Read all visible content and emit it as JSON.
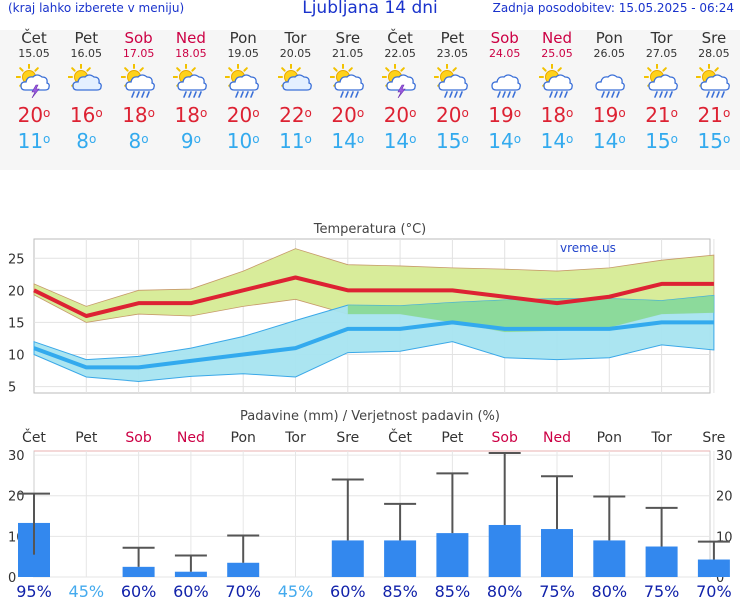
{
  "header": {
    "left_note": "(kraj lahko izberete v meniju)",
    "title": "Ljubljana 14 dni",
    "updated": "Zadnja posodobitev: 15.05.2025 - 06:24"
  },
  "days": [
    {
      "name": "Čet",
      "date": "15.05",
      "weekend": false,
      "icon": "sun-cloud-lightning-icon",
      "tmax": "20",
      "tmin": "11"
    },
    {
      "name": "Pet",
      "date": "16.05",
      "weekend": false,
      "icon": "sun-cloud-icon",
      "tmax": "16",
      "tmin": "8"
    },
    {
      "name": "Sob",
      "date": "17.05",
      "weekend": true,
      "icon": "sun-cloud-rain-icon",
      "tmax": "18",
      "tmin": "8"
    },
    {
      "name": "Ned",
      "date": "18.05",
      "weekend": true,
      "icon": "sun-cloud-rain-icon",
      "tmax": "18",
      "tmin": "9"
    },
    {
      "name": "Pon",
      "date": "19.05",
      "weekend": false,
      "icon": "sun-cloud-rain-icon",
      "tmax": "20",
      "tmin": "10"
    },
    {
      "name": "Tor",
      "date": "20.05",
      "weekend": false,
      "icon": "sun-cloud-icon",
      "tmax": "22",
      "tmin": "11"
    },
    {
      "name": "Sre",
      "date": "21.05",
      "weekend": false,
      "icon": "sun-cloud-rain-icon",
      "tmax": "20",
      "tmin": "14"
    },
    {
      "name": "Čet",
      "date": "22.05",
      "weekend": false,
      "icon": "sun-cloud-lightning-icon",
      "tmax": "20",
      "tmin": "14"
    },
    {
      "name": "Pet",
      "date": "23.05",
      "weekend": false,
      "icon": "sun-cloud-rain-icon",
      "tmax": "20",
      "tmin": "15"
    },
    {
      "name": "Sob",
      "date": "24.05",
      "weekend": true,
      "icon": "cloud-rain-icon",
      "tmax": "19",
      "tmin": "14"
    },
    {
      "name": "Ned",
      "date": "25.05",
      "weekend": true,
      "icon": "sun-cloud-rain-icon",
      "tmax": "18",
      "tmin": "14"
    },
    {
      "name": "Pon",
      "date": "26.05",
      "weekend": false,
      "icon": "cloud-rain-icon",
      "tmax": "19",
      "tmin": "14"
    },
    {
      "name": "Tor",
      "date": "27.05",
      "weekend": false,
      "icon": "sun-cloud-rain-icon",
      "tmax": "21",
      "tmin": "15"
    },
    {
      "name": "Sre",
      "date": "28.05",
      "weekend": false,
      "icon": "sun-cloud-rain-icon",
      "tmax": "21",
      "tmin": "15"
    }
  ],
  "colors": {
    "weekend": "#cc0044",
    "tmax": "#dd2233",
    "tmin": "#33aaee",
    "tmax_band": "#d8ec9a",
    "tmin_band": "#a6e4f0",
    "overlap_band": "#88d892",
    "bar": "#3388ee",
    "prob": "#1122aa",
    "prob_low": "#44aaee"
  },
  "chart_data": [
    {
      "type": "line",
      "title": "Temperatura (°C)",
      "watermark": "vreme.us",
      "categories": [
        "15.05",
        "16.05",
        "17.05",
        "18.05",
        "19.05",
        "20.05",
        "21.05",
        "22.05",
        "23.05",
        "24.05",
        "25.05",
        "26.05",
        "27.05",
        "28.05"
      ],
      "series": [
        {
          "values": [
            20,
            16,
            18,
            18,
            20,
            22,
            20,
            20,
            20,
            19,
            18,
            19,
            21,
            21
          ]
        },
        {
          "values": [
            11,
            8,
            8,
            9,
            10,
            11,
            14,
            14,
            15,
            14,
            14,
            14,
            15,
            15
          ]
        }
      ],
      "tmax_band_high": [
        21,
        17.5,
        20,
        20.2,
        23,
        26.5,
        24,
        23.8,
        23.5,
        23.3,
        23,
        23.5,
        24.7,
        25.5
      ],
      "tmax_band_low": [
        19.3,
        15,
        16.3,
        16,
        17.5,
        18.6,
        16.3,
        16.3,
        15,
        13.5,
        13.7,
        14.2,
        16.3,
        16.5
      ],
      "tmin_band_high": [
        12,
        9.2,
        9.7,
        11,
        12.8,
        15.3,
        17.7,
        17.6,
        18.1,
        18.5,
        18.7,
        18.7,
        18.4,
        19.2
      ],
      "tmin_band_low": [
        10,
        6.5,
        5.8,
        6.6,
        7,
        6.5,
        10.3,
        10.5,
        12,
        9.5,
        9.2,
        9.5,
        11.5,
        10.7
      ],
      "yticks": [
        5,
        10,
        15,
        20,
        25
      ],
      "ylim": [
        4,
        28
      ],
      "grid": true
    },
    {
      "type": "bar",
      "title": "Padavine (mm) / Verjetnost padavin (%)",
      "categories": [
        "Čet",
        "Pet",
        "Sob",
        "Ned",
        "Pon",
        "Tor",
        "Sre",
        "Čet",
        "Pet",
        "Sob",
        "Ned",
        "Pon",
        "Tor",
        "Sre"
      ],
      "values": [
        13.3,
        0,
        2.5,
        1.3,
        3.5,
        0,
        9,
        9,
        10.8,
        12.8,
        11.8,
        9,
        7.5,
        4.3
      ],
      "error_upper": [
        20.5,
        0,
        7.2,
        5.3,
        10.2,
        0,
        24,
        18,
        25.5,
        30.5,
        24.8,
        19.8,
        17,
        8.7
      ],
      "error_lower": [
        5.5,
        0,
        2.5,
        1.3,
        3.5,
        0,
        9,
        9,
        10.8,
        12.8,
        11.8,
        9,
        7.5,
        4.3
      ],
      "probability": [
        "95%",
        "45%",
        "60%",
        "60%",
        "70%",
        "45%",
        "60%",
        "85%",
        "85%",
        "80%",
        "75%",
        "80%",
        "75%",
        "70%"
      ],
      "yticks": [
        0,
        10,
        20,
        30
      ],
      "ylim": [
        0,
        31
      ],
      "grid": true
    }
  ]
}
